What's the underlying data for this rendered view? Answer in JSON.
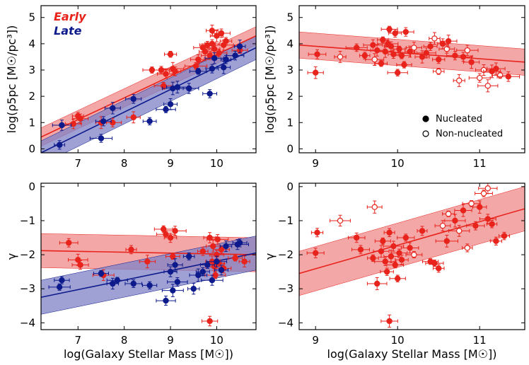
{
  "chart_data": [
    {
      "id": "top-left",
      "type": "scatter",
      "xlim": [
        6.2,
        10.85
      ],
      "ylim": [
        -0.15,
        5.45
      ],
      "xticks": [
        7,
        8,
        9,
        10
      ],
      "yticks": [
        0,
        1,
        2,
        3,
        4,
        5
      ],
      "xlabel": "",
      "ylabel": "log(ρ5pc [M☉/pc³])",
      "groups": [
        {
          "name": "Early",
          "color": "#e8231c"
        },
        {
          "name": "Late",
          "color": "#0c1a8c"
        }
      ],
      "series": [
        {
          "name": "Early",
          "color": "#e8231c",
          "fit": {
            "x": [
              6.2,
              10.85
            ],
            "y": [
              0.45,
              4.3
            ],
            "band": 0.35
          },
          "points": [
            {
              "x": 6.9,
              "y": 0.95
            },
            {
              "x": 7.0,
              "y": 1.25
            },
            {
              "x": 7.05,
              "y": 1.15
            },
            {
              "x": 7.5,
              "y": 1.0
            },
            {
              "x": 7.75,
              "y": 1.0
            },
            {
              "x": 8.2,
              "y": 1.2
            },
            {
              "x": 8.6,
              "y": 3.0
            },
            {
              "x": 8.8,
              "y": 3.0
            },
            {
              "x": 8.85,
              "y": 2.4
            },
            {
              "x": 8.9,
              "y": 2.85
            },
            {
              "x": 9.0,
              "y": 3.6
            },
            {
              "x": 9.05,
              "y": 3.05
            },
            {
              "x": 9.1,
              "y": 2.95
            },
            {
              "x": 9.55,
              "y": 3.15
            },
            {
              "x": 9.6,
              "y": 3.4
            },
            {
              "x": 9.7,
              "y": 3.85
            },
            {
              "x": 9.75,
              "y": 3.7
            },
            {
              "x": 9.8,
              "y": 3.95
            },
            {
              "x": 9.85,
              "y": 3.55
            },
            {
              "x": 9.9,
              "y": 4.5
            },
            {
              "x": 9.9,
              "y": 4.0
            },
            {
              "x": 9.95,
              "y": 3.8
            },
            {
              "x": 10.0,
              "y": 4.3
            },
            {
              "x": 10.05,
              "y": 3.65
            },
            {
              "x": 10.1,
              "y": 4.4
            },
            {
              "x": 10.15,
              "y": 3.95
            },
            {
              "x": 10.2,
              "y": 4.1
            },
            {
              "x": 10.5,
              "y": 3.75
            }
          ]
        },
        {
          "name": "Late",
          "color": "#0c1a8c",
          "fit": {
            "x": [
              6.2,
              10.85
            ],
            "y": [
              -0.15,
              3.85
            ],
            "band": 0.45
          },
          "points": [
            {
              "x": 6.6,
              "y": 0.15
            },
            {
              "x": 6.65,
              "y": 0.9
            },
            {
              "x": 7.5,
              "y": 0.4
            },
            {
              "x": 7.55,
              "y": 1.05
            },
            {
              "x": 7.75,
              "y": 1.55
            },
            {
              "x": 8.2,
              "y": 1.9
            },
            {
              "x": 8.55,
              "y": 1.05
            },
            {
              "x": 8.9,
              "y": 1.5
            },
            {
              "x": 9.0,
              "y": 1.7
            },
            {
              "x": 9.05,
              "y": 2.3
            },
            {
              "x": 9.15,
              "y": 2.35
            },
            {
              "x": 9.4,
              "y": 2.3
            },
            {
              "x": 9.6,
              "y": 2.95
            },
            {
              "x": 9.85,
              "y": 2.1
            },
            {
              "x": 9.9,
              "y": 3.05
            },
            {
              "x": 9.95,
              "y": 3.45
            },
            {
              "x": 10.15,
              "y": 3.1
            },
            {
              "x": 10.2,
              "y": 3.4
            },
            {
              "x": 10.4,
              "y": 3.55
            },
            {
              "x": 10.5,
              "y": 3.9
            }
          ]
        }
      ]
    },
    {
      "id": "top-right",
      "type": "scatter",
      "xlim": [
        8.8,
        11.55
      ],
      "ylim": [
        -0.15,
        5.45
      ],
      "xticks": [
        9,
        10,
        11
      ],
      "yticks": [
        0,
        1,
        2,
        3,
        4,
        5
      ],
      "xlabel": "",
      "ylabel": "log(ρ5pc [M☉/pc³])",
      "legend": {
        "location": "lower-right",
        "entries": [
          "Nucleated",
          "Non-nucleated"
        ]
      },
      "series": [
        {
          "name": "Early",
          "color": "#e8231c",
          "fit": {
            "x": [
              8.8,
              11.55
            ],
            "y": [
              3.95,
              3.3
            ],
            "band": 0.5
          },
          "points": [
            {
              "x": 9.0,
              "y": 2.9,
              "filled": true
            },
            {
              "x": 9.02,
              "y": 3.6,
              "filled": true
            },
            {
              "x": 9.3,
              "y": 3.5,
              "filled": false
            },
            {
              "x": 9.5,
              "y": 3.85,
              "filled": true
            },
            {
              "x": 9.6,
              "y": 3.55,
              "filled": true
            },
            {
              "x": 9.7,
              "y": 3.95,
              "filled": true
            },
            {
              "x": 9.72,
              "y": 3.4,
              "filled": false
            },
            {
              "x": 9.75,
              "y": 3.75,
              "filled": true
            },
            {
              "x": 9.8,
              "y": 3.25,
              "filled": true
            },
            {
              "x": 9.82,
              "y": 4.15,
              "filled": true
            },
            {
              "x": 9.85,
              "y": 3.7,
              "filled": true
            },
            {
              "x": 9.88,
              "y": 4.0,
              "filled": true
            },
            {
              "x": 9.9,
              "y": 4.55,
              "filled": true
            },
            {
              "x": 9.92,
              "y": 3.9,
              "filled": true
            },
            {
              "x": 9.95,
              "y": 3.6,
              "filled": true
            },
            {
              "x": 9.97,
              "y": 4.4,
              "filled": true
            },
            {
              "x": 10.0,
              "y": 2.9,
              "filled": true
            },
            {
              "x": 10.02,
              "y": 3.8,
              "filled": true
            },
            {
              "x": 10.05,
              "y": 3.55,
              "filled": true
            },
            {
              "x": 10.08,
              "y": 3.2,
              "filled": true
            },
            {
              "x": 10.1,
              "y": 4.45,
              "filled": true
            },
            {
              "x": 10.15,
              "y": 3.7,
              "filled": true
            },
            {
              "x": 10.2,
              "y": 3.85,
              "filled": false
            },
            {
              "x": 10.3,
              "y": 3.5,
              "filled": true
            },
            {
              "x": 10.35,
              "y": 3.65,
              "filled": true
            },
            {
              "x": 10.4,
              "y": 3.9,
              "filled": true
            },
            {
              "x": 10.45,
              "y": 4.2,
              "filled": false
            },
            {
              "x": 10.5,
              "y": 2.95,
              "filled": false
            },
            {
              "x": 10.5,
              "y": 3.4,
              "filled": true
            },
            {
              "x": 10.55,
              "y": 4.0,
              "filled": true
            },
            {
              "x": 10.6,
              "y": 3.8,
              "filled": false
            },
            {
              "x": 10.62,
              "y": 4.1,
              "filled": true
            },
            {
              "x": 10.7,
              "y": 3.55,
              "filled": true
            },
            {
              "x": 10.75,
              "y": 2.6,
              "filled": false
            },
            {
              "x": 10.8,
              "y": 3.5,
              "filled": true
            },
            {
              "x": 10.85,
              "y": 3.75,
              "filled": false
            },
            {
              "x": 10.9,
              "y": 3.3,
              "filled": true
            },
            {
              "x": 11.0,
              "y": 2.7,
              "filled": false
            },
            {
              "x": 11.05,
              "y": 3.0,
              "filled": false
            },
            {
              "x": 11.1,
              "y": 2.4,
              "filled": false
            },
            {
              "x": 11.15,
              "y": 2.95,
              "filled": true
            },
            {
              "x": 11.2,
              "y": 3.05,
              "filled": true
            },
            {
              "x": 11.25,
              "y": 2.8,
              "filled": false
            },
            {
              "x": 11.35,
              "y": 2.75,
              "filled": true
            }
          ]
        }
      ]
    },
    {
      "id": "bottom-left",
      "type": "scatter",
      "xlim": [
        6.2,
        10.85
      ],
      "ylim": [
        -4.2,
        0.1
      ],
      "xticks": [
        7,
        8,
        9,
        10
      ],
      "yticks": [
        0,
        -1,
        -2,
        -3,
        -4
      ],
      "xlabel": "log(Galaxy Stellar Mass [M☉])",
      "ylabel": "γ",
      "series": [
        {
          "name": "Early",
          "color": "#e8231c",
          "fit": {
            "x": [
              6.2,
              10.85
            ],
            "y": [
              -1.88,
              -2.0
            ],
            "band": 0.5
          },
          "points": [
            {
              "x": 6.8,
              "y": -1.65
            },
            {
              "x": 7.0,
              "y": -2.15
            },
            {
              "x": 7.05,
              "y": -2.3
            },
            {
              "x": 7.55,
              "y": -2.6
            },
            {
              "x": 8.15,
              "y": -1.85
            },
            {
              "x": 8.5,
              "y": -2.2
            },
            {
              "x": 8.85,
              "y": -1.25
            },
            {
              "x": 8.9,
              "y": -1.4
            },
            {
              "x": 9.0,
              "y": -1.5
            },
            {
              "x": 9.05,
              "y": -2.05
            },
            {
              "x": 9.1,
              "y": -1.3
            },
            {
              "x": 9.7,
              "y": -1.9
            },
            {
              "x": 9.85,
              "y": -1.5
            },
            {
              "x": 9.9,
              "y": -2.2
            },
            {
              "x": 9.92,
              "y": -1.75
            },
            {
              "x": 9.95,
              "y": -2.35
            },
            {
              "x": 9.97,
              "y": -2.6
            },
            {
              "x": 10.0,
              "y": -2.0
            },
            {
              "x": 10.02,
              "y": -1.55
            },
            {
              "x": 10.05,
              "y": -2.25
            },
            {
              "x": 10.1,
              "y": -1.85
            },
            {
              "x": 10.15,
              "y": -2.4
            },
            {
              "x": 10.4,
              "y": -2.1
            },
            {
              "x": 10.6,
              "y": -2.2
            },
            {
              "x": 9.85,
              "y": -3.95
            }
          ]
        },
        {
          "name": "Late",
          "color": "#0c1a8c",
          "fit": {
            "x": [
              6.2,
              10.85
            ],
            "y": [
              -3.25,
              -1.95
            ],
            "band": 0.5
          },
          "points": [
            {
              "x": 6.6,
              "y": -2.95
            },
            {
              "x": 6.65,
              "y": -2.75
            },
            {
              "x": 7.5,
              "y": -2.55
            },
            {
              "x": 7.75,
              "y": -2.85
            },
            {
              "x": 7.85,
              "y": -2.75
            },
            {
              "x": 8.2,
              "y": -2.85
            },
            {
              "x": 8.55,
              "y": -2.9
            },
            {
              "x": 8.9,
              "y": -3.35
            },
            {
              "x": 9.0,
              "y": -2.5
            },
            {
              "x": 9.05,
              "y": -3.05
            },
            {
              "x": 9.1,
              "y": -2.3
            },
            {
              "x": 9.15,
              "y": -2.8
            },
            {
              "x": 9.4,
              "y": -2.05
            },
            {
              "x": 9.5,
              "y": -3.0
            },
            {
              "x": 9.6,
              "y": -2.6
            },
            {
              "x": 9.7,
              "y": -2.5
            },
            {
              "x": 9.8,
              "y": -2.3
            },
            {
              "x": 9.9,
              "y": -2.75
            },
            {
              "x": 10.0,
              "y": -2.2
            },
            {
              "x": 10.1,
              "y": -2.45
            },
            {
              "x": 10.2,
              "y": -1.75
            },
            {
              "x": 10.45,
              "y": -1.7
            },
            {
              "x": 10.5,
              "y": -1.65
            }
          ]
        }
      ]
    },
    {
      "id": "bottom-right",
      "type": "scatter",
      "xlim": [
        8.8,
        11.55
      ],
      "ylim": [
        -4.2,
        0.1
      ],
      "xticks": [
        9,
        10,
        11
      ],
      "yticks": [
        0,
        -1,
        -2,
        -3,
        -4
      ],
      "xlabel": "log(Galaxy Stellar Mass [M☉])",
      "ylabel": "γ",
      "series": [
        {
          "name": "Early",
          "color": "#e8231c",
          "fit": {
            "x": [
              8.8,
              11.55
            ],
            "y": [
              -2.55,
              -0.65
            ],
            "band": 0.65
          },
          "points": [
            {
              "x": 9.0,
              "y": -1.95
            },
            {
              "x": 9.02,
              "y": -1.35
            },
            {
              "x": 9.3,
              "y": -1.0,
              "filled": false
            },
            {
              "x": 9.5,
              "y": -1.5
            },
            {
              "x": 9.55,
              "y": -1.85
            },
            {
              "x": 9.7,
              "y": -2.1
            },
            {
              "x": 9.72,
              "y": -0.6,
              "filled": false
            },
            {
              "x": 9.75,
              "y": -2.85
            },
            {
              "x": 9.8,
              "y": -1.9
            },
            {
              "x": 9.82,
              "y": -1.6
            },
            {
              "x": 9.85,
              "y": -2.2
            },
            {
              "x": 9.87,
              "y": -2.5
            },
            {
              "x": 9.9,
              "y": -1.35
            },
            {
              "x": 9.92,
              "y": -2.05
            },
            {
              "x": 9.95,
              "y": -1.75
            },
            {
              "x": 9.97,
              "y": -2.3
            },
            {
              "x": 10.0,
              "y": -2.7
            },
            {
              "x": 10.02,
              "y": -1.95
            },
            {
              "x": 10.05,
              "y": -2.15
            },
            {
              "x": 10.1,
              "y": -1.5
            },
            {
              "x": 10.15,
              "y": -1.8
            },
            {
              "x": 10.2,
              "y": -2.0,
              "filled": false
            },
            {
              "x": 10.3,
              "y": -1.3
            },
            {
              "x": 10.4,
              "y": -2.2
            },
            {
              "x": 10.45,
              "y": -2.25
            },
            {
              "x": 10.5,
              "y": -2.4
            },
            {
              "x": 10.55,
              "y": -1.15,
              "filled": false
            },
            {
              "x": 10.6,
              "y": -1.6
            },
            {
              "x": 10.62,
              "y": -0.8,
              "filled": false
            },
            {
              "x": 10.7,
              "y": -1.0
            },
            {
              "x": 10.75,
              "y": -1.3,
              "filled": false
            },
            {
              "x": 10.8,
              "y": -0.7
            },
            {
              "x": 10.85,
              "y": -1.8,
              "filled": false
            },
            {
              "x": 10.9,
              "y": -0.5,
              "filled": false
            },
            {
              "x": 10.95,
              "y": -1.15
            },
            {
              "x": 11.0,
              "y": -0.6
            },
            {
              "x": 11.05,
              "y": -0.2,
              "filled": false
            },
            {
              "x": 11.1,
              "y": -0.05,
              "filled": false
            },
            {
              "x": 11.15,
              "y": -1.1
            },
            {
              "x": 11.2,
              "y": -1.6
            },
            {
              "x": 11.3,
              "y": -1.45
            },
            {
              "x": 11.1,
              "y": -0.95
            },
            {
              "x": 9.9,
              "y": -3.95
            }
          ]
        }
      ]
    }
  ]
}
